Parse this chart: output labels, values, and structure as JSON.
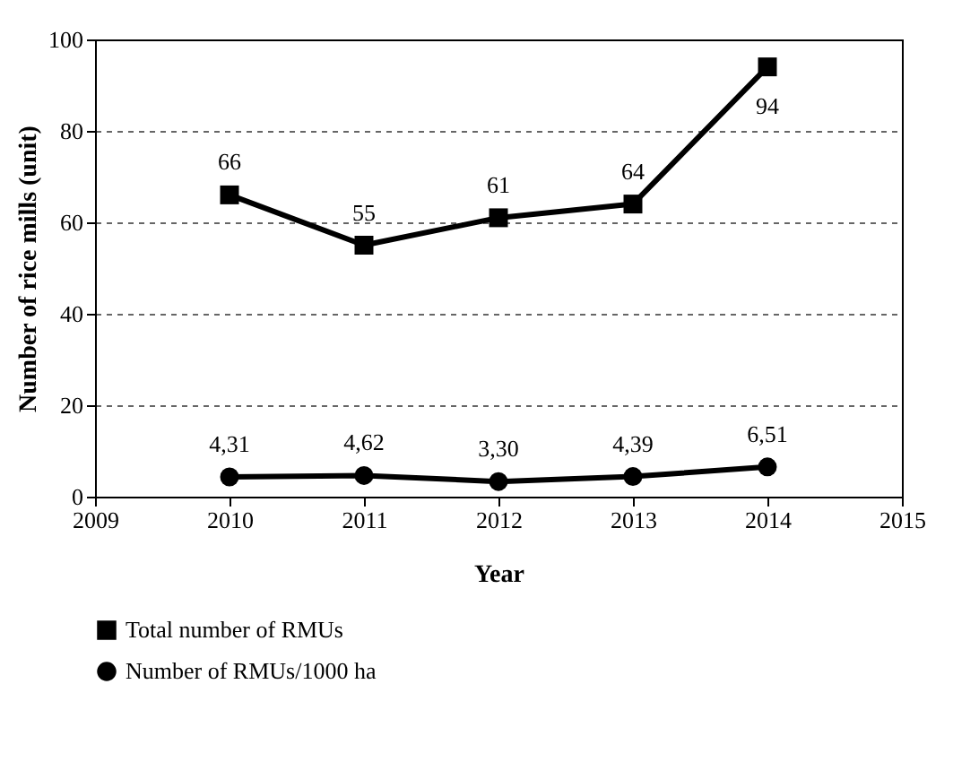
{
  "chart_data": {
    "type": "line",
    "xlabel": "Year",
    "ylabel": "Number of rice mills (unit)",
    "x": [
      2010,
      2011,
      2012,
      2013,
      2014
    ],
    "series": [
      {
        "name": "Total number of RMUs",
        "color": "#000000",
        "marker": "square",
        "values": [
          66,
          55,
          61,
          64,
          94
        ],
        "value_labels": [
          "66",
          "55",
          "61",
          "64",
          "94"
        ]
      },
      {
        "name": "Number of RMUs/1000 ha",
        "color": "#000000",
        "marker": "circle",
        "values": [
          4.31,
          4.62,
          3.3,
          4.39,
          6.51
        ],
        "value_labels": [
          "4,31",
          "4,62",
          "3,30",
          "4,39",
          "6,51"
        ]
      }
    ],
    "xlim": [
      2009,
      2015
    ],
    "xticks": [
      2009,
      2010,
      2011,
      2012,
      2013,
      2014,
      2015
    ],
    "ylim": [
      0,
      100
    ],
    "yticks": [
      0,
      20,
      40,
      60,
      80,
      100
    ],
    "grid": "y",
    "legend": "bottom",
    "line_style": "solid"
  }
}
